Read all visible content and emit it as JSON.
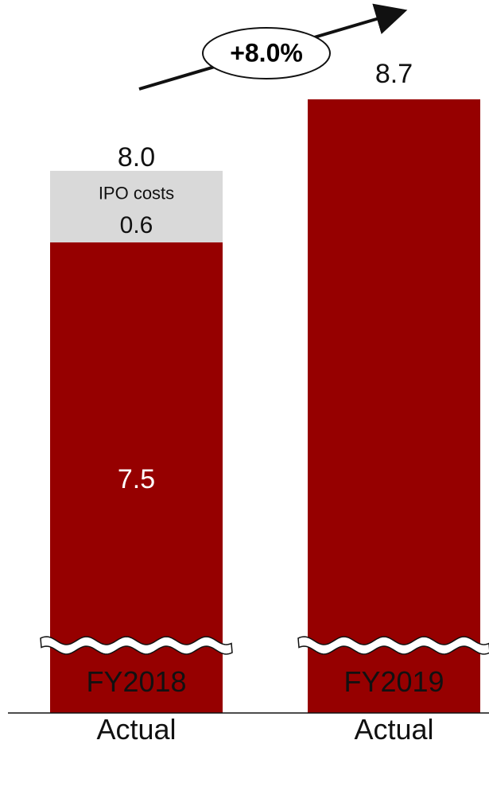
{
  "chart_data": {
    "type": "stacked_bar",
    "categories": [
      "FY2018 Actual",
      "FY2019 Actual"
    ],
    "series": [
      {
        "color": "#960000",
        "values": [
          7.5,
          8.7
        ]
      },
      {
        "name": "IPO costs",
        "color": "#d9d9d9",
        "values": [
          0.6,
          null
        ]
      }
    ],
    "totals": [
      8.0,
      8.7
    ],
    "totals_labels": [
      "8.0",
      "8.7"
    ],
    "annotation": "+8.0%",
    "ylim": [
      3.55,
      9.0
    ],
    "axis_break": true
  }
}
